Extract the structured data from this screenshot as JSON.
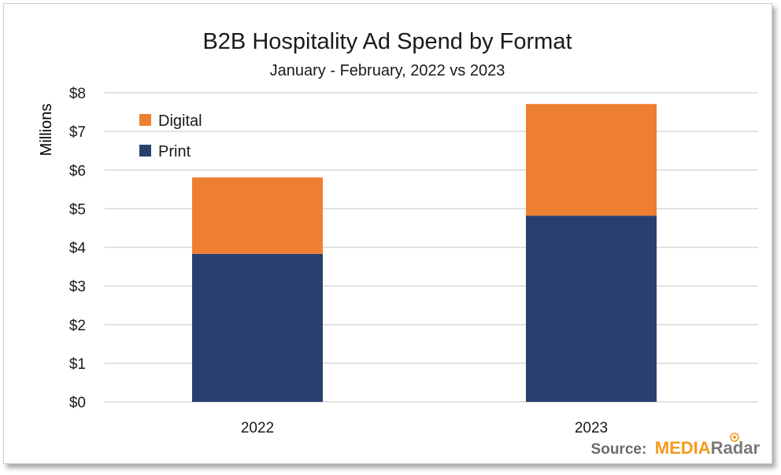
{
  "chart_data": {
    "type": "bar",
    "stacked": true,
    "title": "B2B Hospitality Ad Spend by Format",
    "subtitle": "January - February, 2022 vs 2023",
    "xlabel": "",
    "ylabel": "Millions",
    "categories": [
      "2022",
      "2023"
    ],
    "series": [
      {
        "name": "Print",
        "values": [
          3.83,
          4.82
        ],
        "color": "#27406e"
      },
      {
        "name": "Digital",
        "values": [
          1.98,
          2.89
        ],
        "color": "#ee7f31"
      }
    ],
    "ylim": [
      0,
      8
    ],
    "yticks": [
      0,
      1,
      2,
      3,
      4,
      5,
      6,
      7,
      8
    ],
    "ytick_labels": [
      "$0",
      "$1",
      "$2",
      "$3",
      "$4",
      "$5",
      "$6",
      "$7",
      "$8"
    ],
    "grid": true,
    "legend": {
      "placement": "top-left",
      "order": [
        "Digital",
        "Print"
      ]
    }
  },
  "source": {
    "label": "Source:",
    "brand_part1": "MEDIA",
    "brand_part2": "Radar",
    "brand_color1": "#f39a1e",
    "brand_color2": "#7a7a7a"
  }
}
